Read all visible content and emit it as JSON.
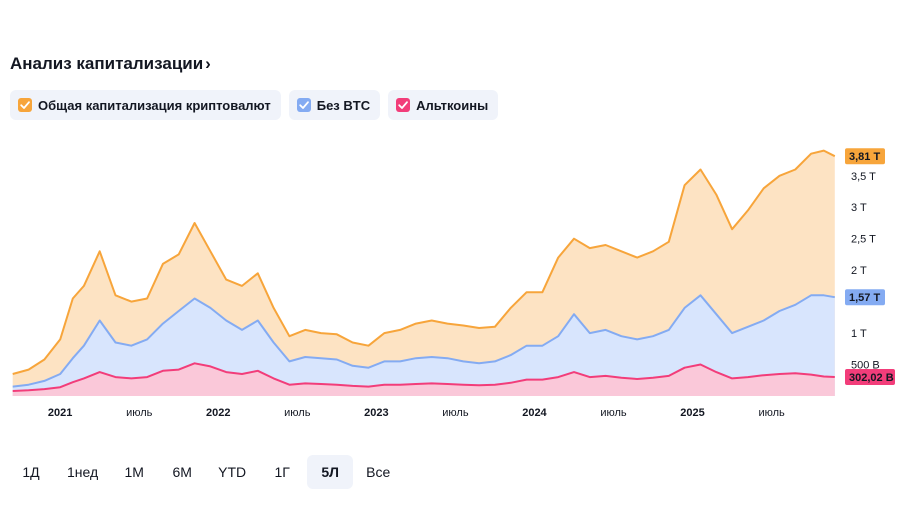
{
  "header": {
    "title": "Анализ капитализации",
    "chevron": "›"
  },
  "legend": [
    {
      "label": "Общая капитализация криптовалют",
      "color": "#f7a53b",
      "icon": "check-icon"
    },
    {
      "label": "Без BTC",
      "color": "#84abf2",
      "icon": "check-icon"
    },
    {
      "label": "Альткоины",
      "color": "#f23d7a",
      "icon": "check-icon"
    }
  ],
  "ranges": {
    "items": [
      "1Д",
      "1нед",
      "1М",
      "6М",
      "YTD",
      "1Г",
      "5Л",
      "Все"
    ],
    "active": "5Л"
  },
  "chart_data": {
    "type": "area",
    "x_unit": "date (decimal year)",
    "y_unit": "USD trillions",
    "xlim": [
      2020.67,
      2025.92
    ],
    "ylim": [
      0,
      4.1
    ],
    "y_ticks": [
      {
        "value": 0.5,
        "label": "500 B"
      },
      {
        "value": 1,
        "label": "1 T"
      },
      {
        "value": 2,
        "label": "2 T"
      },
      {
        "value": 2.5,
        "label": "2,5 T"
      },
      {
        "value": 3,
        "label": "3 T"
      },
      {
        "value": 3.5,
        "label": "3,5 T"
      }
    ],
    "x_ticks": [
      {
        "value": 2021.0,
        "label": "2021",
        "bold": true
      },
      {
        "value": 2021.5,
        "label": "июль",
        "bold": false
      },
      {
        "value": 2022.0,
        "label": "2022",
        "bold": true
      },
      {
        "value": 2022.5,
        "label": "июль",
        "bold": false
      },
      {
        "value": 2023.0,
        "label": "2023",
        "bold": true
      },
      {
        "value": 2023.5,
        "label": "июль",
        "bold": false
      },
      {
        "value": 2024.0,
        "label": "2024",
        "bold": true
      },
      {
        "value": 2024.5,
        "label": "июль",
        "bold": false
      },
      {
        "value": 2025.0,
        "label": "2025",
        "bold": true
      },
      {
        "value": 2025.5,
        "label": "июль",
        "bold": false
      }
    ],
    "last_value_labels": [
      {
        "series": "Общая капитализация криптовалют",
        "value": 3.81,
        "label": "3,81 T"
      },
      {
        "series": "Без BTC",
        "value": 1.57,
        "label": "1,57 T"
      },
      {
        "series": "Альткоины",
        "value": 0.302,
        "label": "302,02 B"
      }
    ],
    "x": [
      2020.7,
      2020.8,
      2020.9,
      2021.0,
      2021.08,
      2021.15,
      2021.25,
      2021.35,
      2021.45,
      2021.55,
      2021.65,
      2021.75,
      2021.85,
      2021.95,
      2022.05,
      2022.15,
      2022.25,
      2022.35,
      2022.45,
      2022.55,
      2022.65,
      2022.75,
      2022.85,
      2022.95,
      2023.05,
      2023.15,
      2023.25,
      2023.35,
      2023.45,
      2023.55,
      2023.65,
      2023.75,
      2023.85,
      2023.95,
      2024.05,
      2024.15,
      2024.25,
      2024.35,
      2024.45,
      2024.55,
      2024.65,
      2024.75,
      2024.85,
      2024.95,
      2025.05,
      2025.15,
      2025.25,
      2025.35,
      2025.45,
      2025.55,
      2025.65,
      2025.75,
      2025.83,
      2025.9
    ],
    "series": [
      {
        "name": "Общая капитализация криптовалют",
        "color": "#f7a53b",
        "values": [
          0.35,
          0.42,
          0.58,
          0.9,
          1.55,
          1.75,
          2.3,
          1.6,
          1.5,
          1.55,
          2.1,
          2.25,
          2.75,
          2.3,
          1.85,
          1.75,
          1.95,
          1.4,
          0.95,
          1.05,
          1.0,
          0.98,
          0.85,
          0.8,
          1.0,
          1.05,
          1.15,
          1.2,
          1.15,
          1.12,
          1.08,
          1.1,
          1.4,
          1.65,
          1.65,
          2.2,
          2.5,
          2.35,
          2.4,
          2.3,
          2.2,
          2.3,
          2.45,
          3.35,
          3.6,
          3.2,
          2.65,
          2.95,
          3.3,
          3.5,
          3.6,
          3.85,
          3.9,
          3.81
        ]
      },
      {
        "name": "Без BTC",
        "color": "#84abf2",
        "values": [
          0.15,
          0.18,
          0.24,
          0.35,
          0.6,
          0.8,
          1.2,
          0.85,
          0.8,
          0.9,
          1.15,
          1.35,
          1.55,
          1.4,
          1.2,
          1.05,
          1.2,
          0.85,
          0.55,
          0.62,
          0.6,
          0.58,
          0.48,
          0.45,
          0.55,
          0.55,
          0.6,
          0.62,
          0.6,
          0.55,
          0.52,
          0.55,
          0.65,
          0.8,
          0.8,
          0.95,
          1.3,
          1.0,
          1.05,
          0.95,
          0.9,
          0.95,
          1.05,
          1.4,
          1.6,
          1.3,
          1.0,
          1.1,
          1.2,
          1.35,
          1.45,
          1.6,
          1.6,
          1.57
        ]
      },
      {
        "name": "Альткоины",
        "color": "#f23d7a",
        "values": [
          0.08,
          0.09,
          0.11,
          0.14,
          0.22,
          0.28,
          0.38,
          0.3,
          0.28,
          0.3,
          0.4,
          0.42,
          0.52,
          0.47,
          0.38,
          0.35,
          0.4,
          0.28,
          0.18,
          0.2,
          0.19,
          0.18,
          0.16,
          0.15,
          0.18,
          0.18,
          0.19,
          0.2,
          0.19,
          0.18,
          0.17,
          0.18,
          0.21,
          0.26,
          0.26,
          0.3,
          0.38,
          0.3,
          0.32,
          0.29,
          0.27,
          0.29,
          0.32,
          0.45,
          0.5,
          0.38,
          0.28,
          0.3,
          0.33,
          0.35,
          0.36,
          0.34,
          0.31,
          0.302
        ]
      }
    ]
  }
}
